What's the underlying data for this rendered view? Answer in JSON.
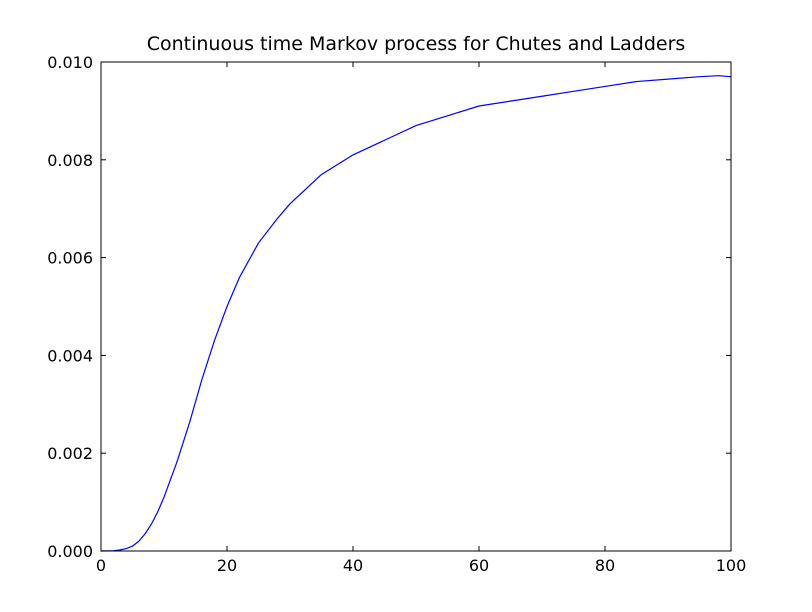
{
  "chart_data": {
    "type": "line",
    "title": "Continuous time Markov process for Chutes and Ladders",
    "xlabel": "",
    "ylabel": "",
    "xlim": [
      0,
      100
    ],
    "ylim": [
      0,
      0.01
    ],
    "x_ticks": [
      0,
      20,
      40,
      60,
      80,
      100
    ],
    "x_tick_labels": [
      "0",
      "20",
      "40",
      "60",
      "80",
      "100"
    ],
    "y_ticks": [
      0,
      0.002,
      0.004,
      0.006,
      0.008,
      0.01
    ],
    "y_tick_labels": [
      "0.000",
      "0.002",
      "0.004",
      "0.006",
      "0.008",
      "0.010"
    ],
    "grid": false,
    "legend": "none",
    "series": [
      {
        "color": "#0000ff",
        "x": [
          0,
          2,
          3,
          4,
          5,
          6,
          7,
          8,
          9,
          10,
          12,
          14,
          16,
          18,
          20,
          22,
          25,
          28,
          30,
          35,
          40,
          45,
          50,
          55,
          60,
          65,
          70,
          75,
          80,
          85,
          90,
          95,
          98,
          100
        ],
        "y": [
          0,
          5e-06,
          2e-05,
          5e-05,
          0.0001,
          0.0002,
          0.00035,
          0.00055,
          0.0008,
          0.0011,
          0.0018,
          0.0026,
          0.0035,
          0.0043,
          0.005,
          0.0056,
          0.0063,
          0.0068,
          0.0071,
          0.0077,
          0.0081,
          0.0084,
          0.0087,
          0.0089,
          0.0091,
          0.0092,
          0.0093,
          0.0094,
          0.0095,
          0.0096,
          0.00965,
          0.0097,
          0.00972,
          0.0097
        ]
      }
    ]
  }
}
